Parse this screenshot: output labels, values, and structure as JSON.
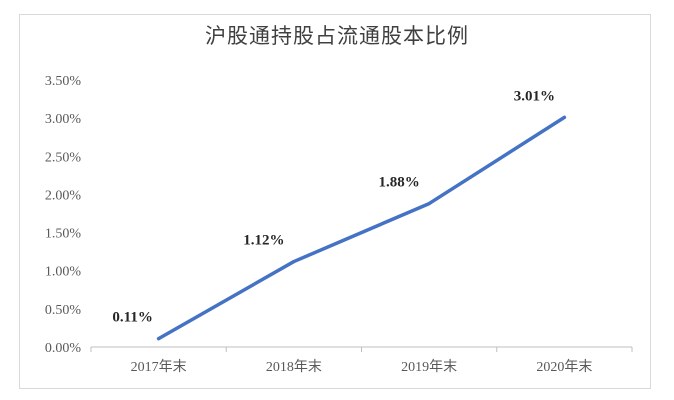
{
  "chart_data": {
    "type": "line",
    "title": "沪股通持股占流通股本比例",
    "categories": [
      "2017年末",
      "2018年末",
      "2019年末",
      "2020年末"
    ],
    "series": [
      {
        "values": [
          0.11,
          1.12,
          1.88,
          3.01
        ],
        "color": "#4472c4"
      }
    ],
    "data_labels": [
      "0.11%",
      "1.12%",
      "1.88%",
      "3.01%"
    ],
    "y_ticks": [
      "0.00%",
      "0.50%",
      "1.00%",
      "1.50%",
      "2.00%",
      "2.50%",
      "3.00%",
      "3.50%"
    ],
    "ylim": [
      0,
      3.5
    ],
    "grid": false,
    "legend": "none"
  }
}
